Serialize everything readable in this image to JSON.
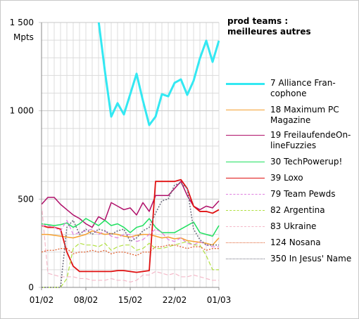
{
  "chart_data": {
    "type": "line",
    "title": "prod teams :\nmeilleures autres",
    "y_label": "Mpts",
    "categories": [
      "01/02",
      null,
      null,
      null,
      null,
      null,
      null,
      "08/02",
      null,
      null,
      null,
      null,
      null,
      null,
      "15/02",
      null,
      null,
      null,
      null,
      null,
      null,
      "22/02",
      null,
      null,
      null,
      null,
      null,
      null,
      "01/03"
    ],
    "ylim": [
      0,
      1500
    ],
    "yticks": [
      0,
      500,
      {
        "value": 1000,
        "label": "1 000"
      },
      {
        "value": 1500,
        "label": "1 500"
      }
    ],
    "y_minor_ticks": [
      100,
      200,
      300,
      400,
      600,
      700,
      800,
      900,
      1100,
      1200,
      1300,
      1400
    ],
    "grid": true,
    "series": [
      {
        "name": "7 Alliance Fran-\ncophone",
        "color": "#33e8f2",
        "dash": "solid",
        "width": 3,
        "values": [
          null,
          null,
          null,
          null,
          null,
          null,
          null,
          null,
          null,
          1510,
          1225,
          967,
          1043,
          979,
          1094,
          1210,
          1058,
          919,
          967,
          1094,
          1082,
          1158,
          1178,
          1090,
          1170,
          1297,
          1397,
          1277,
          1397
        ]
      },
      {
        "name": "18 Maximum PC\nMagazine",
        "color": "#f5a030",
        "dash": "solid",
        "width": 1.5,
        "values": [
          300,
          300,
          295,
          290,
          285,
          280,
          290,
          300,
          320,
          310,
          300,
          305,
          300,
          290,
          285,
          295,
          300,
          300,
          290,
          280,
          285,
          275,
          280,
          265,
          260,
          255,
          250,
          240,
          280
        ]
      },
      {
        "name": "19 FreilaufendeOn-\nlineFuzzies",
        "color": "#b0106a",
        "dash": "solid",
        "width": 1.5,
        "values": [
          470,
          510,
          510,
          470,
          440,
          410,
          390,
          360,
          340,
          400,
          380,
          480,
          460,
          440,
          450,
          410,
          480,
          430,
          520,
          520,
          520,
          560,
          600,
          520,
          460,
          440,
          460,
          450,
          490
        ]
      },
      {
        "name": "30 TechPowerup!",
        "color": "#20e060",
        "dash": "solid",
        "width": 1.5,
        "values": [
          360,
          355,
          350,
          355,
          365,
          340,
          360,
          390,
          370,
          350,
          380,
          350,
          360,
          340,
          310,
          340,
          350,
          390,
          340,
          310,
          310,
          310,
          330,
          350,
          370,
          310,
          300,
          290,
          350
        ]
      },
      {
        "name": "39 Loxo",
        "color": "#e01010",
        "dash": "solid",
        "width": 1.8,
        "values": [
          350,
          340,
          340,
          330,
          200,
          120,
          90,
          90,
          90,
          90,
          90,
          90,
          95,
          95,
          90,
          85,
          90,
          95,
          600,
          600,
          600,
          600,
          610,
          560,
          460,
          430,
          430,
          420,
          440
        ]
      },
      {
        "name": "79 Team Pewds",
        "color": "#e080e0",
        "dash": "dashed",
        "width": 1.2,
        "values": [
          350,
          350,
          340,
          320,
          380,
          300,
          310,
          320,
          330,
          300,
          320,
          290,
          280,
          300,
          300,
          260,
          270,
          300,
          330,
          310,
          270,
          260,
          280,
          250,
          240,
          260,
          240,
          230,
          230
        ]
      },
      {
        "name": "82 Argentina",
        "color": "#b0e040",
        "dash": "dashed",
        "width": 1.2,
        "values": [
          0,
          0,
          0,
          0,
          50,
          220,
          250,
          240,
          240,
          230,
          250,
          210,
          230,
          240,
          240,
          210,
          220,
          250,
          220,
          220,
          230,
          240,
          250,
          260,
          240,
          240,
          180,
          100,
          100
        ]
      },
      {
        "name": "83 Ukraine",
        "color": "#f4b8c8",
        "dash": "dashed",
        "width": 1.2,
        "values": [
          470,
          80,
          70,
          60,
          60,
          60,
          50,
          50,
          40,
          40,
          40,
          50,
          40,
          40,
          30,
          40,
          70,
          70,
          90,
          80,
          70,
          80,
          60,
          60,
          70,
          60,
          50,
          40,
          40
        ]
      },
      {
        "name": "124 Nosana",
        "color": "#e06030",
        "dash": "dotted",
        "width": 1.3,
        "values": [
          200,
          210,
          210,
          220,
          220,
          190,
          200,
          200,
          210,
          200,
          210,
          190,
          200,
          200,
          190,
          180,
          200,
          200,
          230,
          230,
          240,
          240,
          230,
          220,
          230,
          230,
          210,
          220,
          220
        ]
      },
      {
        "name": "350 In Jesus' Name",
        "color": "#707080",
        "dash": "dotted",
        "width": 1.6,
        "values": [
          0,
          0,
          0,
          0,
          340,
          380,
          300,
          330,
          300,
          330,
          320,
          300,
          320,
          330,
          260,
          280,
          320,
          340,
          420,
          490,
          500,
          580,
          590,
          560,
          330,
          270,
          240,
          240,
          240
        ]
      }
    ]
  }
}
